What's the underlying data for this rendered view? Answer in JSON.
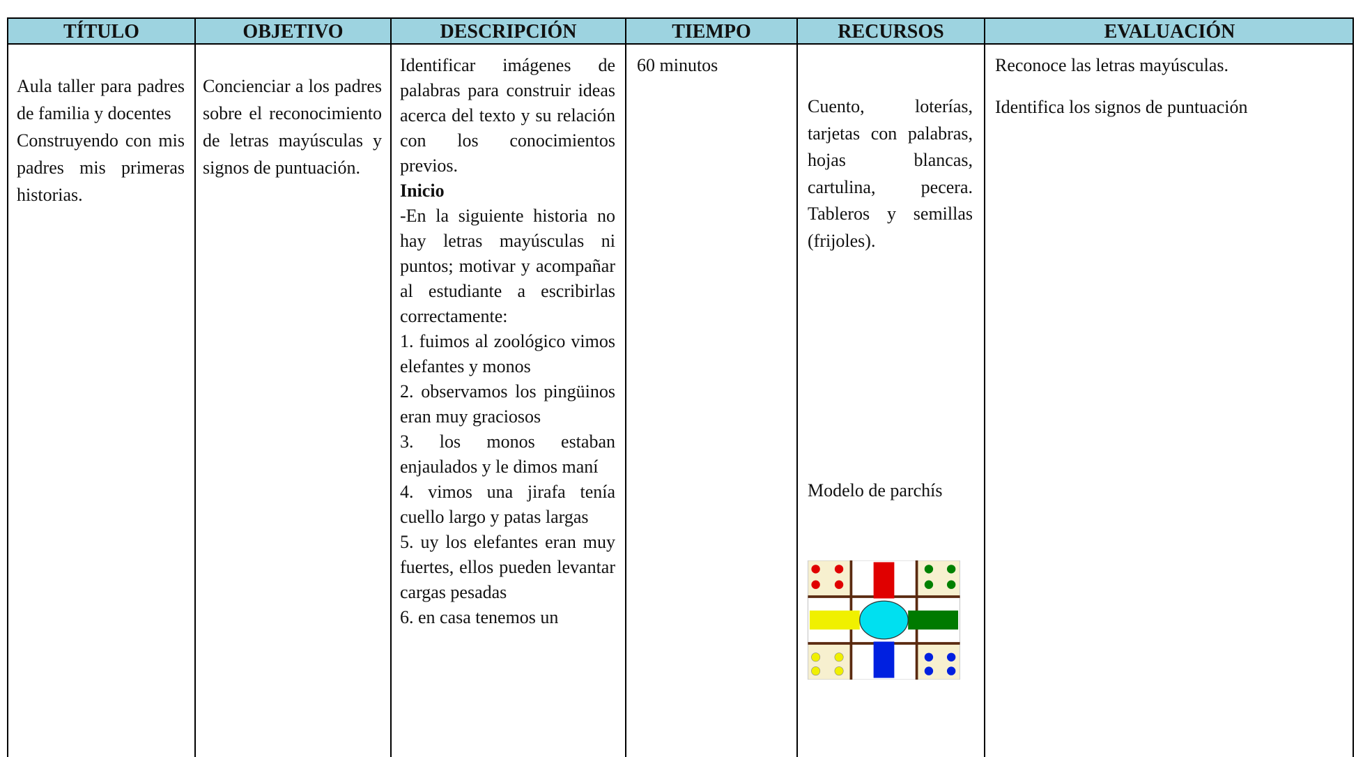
{
  "header": {
    "columns": [
      "TÍTULO",
      "OBJETIVO",
      "DESCRIPCIÓN",
      "TIEMPO",
      "RECURSOS",
      "EVALUACIÓN"
    ]
  },
  "row": {
    "titulo": [
      "Aula taller para padres de familia y docentes",
      "Construyendo con mis padres mis primeras historias."
    ],
    "objetivo": "Concienciar a los padres sobre el reconocimiento de letras mayúsculas y signos de puntuación.",
    "descripcion": {
      "intro": "Identificar imágenes de palabras para construir ideas acerca del texto y su relación con los conocimientos previos.",
      "heading": "Inicio",
      "paragraphs": [
        "-En la siguiente historia no hay letras mayúsculas ni puntos; motivar y acompañar al estudiante a escribirlas correctamente:",
        "1. fuimos al zoológico vimos elefantes y monos",
        "2. observamos los pingüinos eran muy graciosos",
        "3. los monos estaban enjaulados y le dimos maní",
        "4. vimos una jirafa tenía cuello largo y patas largas",
        "5. uy los elefantes eran muy fuertes, ellos pueden levantar cargas pesadas",
        "6. en casa tenemos un"
      ]
    },
    "tiempo": "60 minutos",
    "recursos": [
      "Cuento, loterías, tarjetas con palabras, hojas blancas, cartulina, pecera. Tableros y semillas (frijoles).",
      "Modelo de parchís"
    ],
    "evaluacion": [
      "Reconoce las letras mayúsculas.",
      "Identifica los signos de puntuación"
    ]
  }
}
